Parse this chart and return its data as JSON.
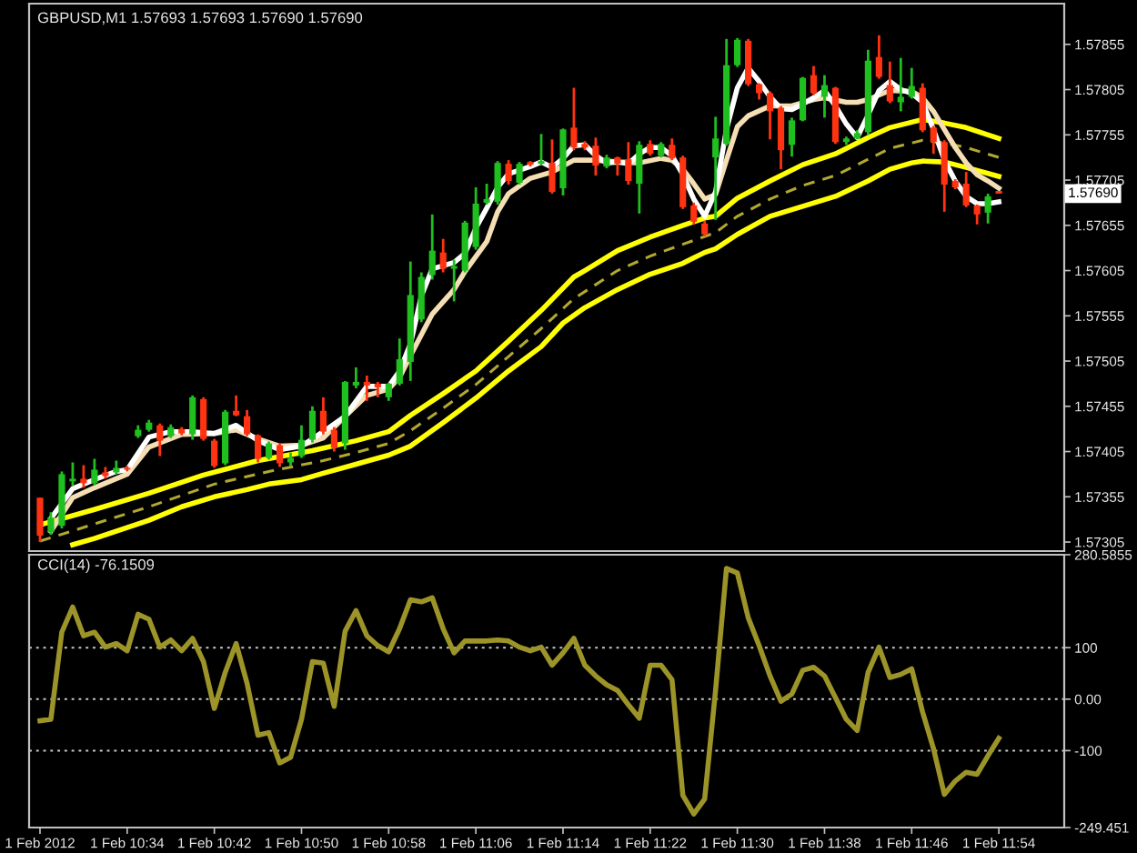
{
  "chart_data": [
    {
      "type": "candlestick",
      "title": "GBPUSD,M1 1.57693 1.57693 1.57690 1.57690",
      "x": [
        "2012-02-01T10:26",
        "2012-02-01T10:27",
        "2012-02-01T10:28",
        "2012-02-01T10:29",
        "2012-02-01T10:30",
        "2012-02-01T10:31",
        "2012-02-01T10:32",
        "2012-02-01T10:33",
        "2012-02-01T10:34",
        "2012-02-01T10:35",
        "2012-02-01T10:36",
        "2012-02-01T10:37",
        "2012-02-01T10:38",
        "2012-02-01T10:39",
        "2012-02-01T10:40",
        "2012-02-01T10:41",
        "2012-02-01T10:42",
        "2012-02-01T10:43",
        "2012-02-01T10:44",
        "2012-02-01T10:45",
        "2012-02-01T10:46",
        "2012-02-01T10:47",
        "2012-02-01T10:48",
        "2012-02-01T10:49",
        "2012-02-01T10:50",
        "2012-02-01T10:51",
        "2012-02-01T10:52",
        "2012-02-01T10:53",
        "2012-02-01T10:54",
        "2012-02-01T10:55",
        "2012-02-01T10:56",
        "2012-02-01T10:57",
        "2012-02-01T10:58",
        "2012-02-01T10:59",
        "2012-02-01T11:00",
        "2012-02-01T11:01",
        "2012-02-01T11:02",
        "2012-02-01T11:03",
        "2012-02-01T11:04",
        "2012-02-01T11:05",
        "2012-02-01T11:06",
        "2012-02-01T11:07",
        "2012-02-01T11:08",
        "2012-02-01T11:09",
        "2012-02-01T11:10",
        "2012-02-01T11:11",
        "2012-02-01T11:12",
        "2012-02-01T11:13",
        "2012-02-01T11:14",
        "2012-02-01T11:15",
        "2012-02-01T11:16",
        "2012-02-01T11:17",
        "2012-02-01T11:18",
        "2012-02-01T11:19",
        "2012-02-01T11:20",
        "2012-02-01T11:21",
        "2012-02-01T11:22",
        "2012-02-01T11:23",
        "2012-02-01T11:24",
        "2012-02-01T11:25",
        "2012-02-01T11:26",
        "2012-02-01T11:27",
        "2012-02-01T11:28",
        "2012-02-01T11:29",
        "2012-02-01T11:30",
        "2012-02-01T11:31",
        "2012-02-01T11:32",
        "2012-02-01T11:33",
        "2012-02-01T11:34",
        "2012-02-01T11:35",
        "2012-02-01T11:36",
        "2012-02-01T11:37",
        "2012-02-01T11:38",
        "2012-02-01T11:39",
        "2012-02-01T11:40",
        "2012-02-01T11:41",
        "2012-02-01T11:42",
        "2012-02-01T11:43",
        "2012-02-01T11:44",
        "2012-02-01T11:45",
        "2012-02-01T11:46",
        "2012-02-01T11:47",
        "2012-02-01T11:48",
        "2012-02-01T11:49",
        "2012-02-01T11:50",
        "2012-02-01T11:51",
        "2012-02-01T11:52",
        "2012-02-01T11:53",
        "2012-02-01T11:54"
      ],
      "ohlc": [
        [
          1.57354,
          1.57354,
          1.57305,
          1.57312
        ],
        [
          1.57316,
          1.57338,
          1.57313,
          1.57332
        ],
        [
          1.57323,
          1.57383,
          1.5732,
          1.5738
        ],
        [
          1.57372,
          1.57393,
          1.57367,
          1.57375
        ],
        [
          1.57375,
          1.5739,
          1.57365,
          1.5737
        ],
        [
          1.5737,
          1.57397,
          1.57368,
          1.57385
        ],
        [
          1.57382,
          1.57388,
          1.57375,
          1.57378
        ],
        [
          1.57382,
          1.57395,
          1.5738,
          1.57387
        ],
        [
          1.57387,
          1.57389,
          1.57383,
          1.57385
        ],
        [
          1.57422,
          1.57434,
          1.5742,
          1.57429
        ],
        [
          1.57429,
          1.5744,
          1.57427,
          1.57437
        ],
        [
          1.57434,
          1.57436,
          1.574,
          1.57417
        ],
        [
          1.57422,
          1.57435,
          1.5742,
          1.57432
        ],
        [
          1.5743,
          1.57432,
          1.57423,
          1.57425
        ],
        [
          1.57424,
          1.57467,
          1.57418,
          1.57465
        ],
        [
          1.57463,
          1.57465,
          1.57417,
          1.57419
        ],
        [
          1.57417,
          1.57419,
          1.57387,
          1.57389
        ],
        [
          1.57392,
          1.57451,
          1.5739,
          1.57449
        ],
        [
          1.5745,
          1.57467,
          1.57444,
          1.57445
        ],
        [
          1.57444,
          1.57451,
          1.57422,
          1.57424
        ],
        [
          1.57423,
          1.57424,
          1.57393,
          1.57397
        ],
        [
          1.57398,
          1.57416,
          1.57396,
          1.57414
        ],
        [
          1.57412,
          1.57414,
          1.57388,
          1.57392
        ],
        [
          1.57393,
          1.57404,
          1.57389,
          1.57398
        ],
        [
          1.574,
          1.57434,
          1.57398,
          1.57418
        ],
        [
          1.57418,
          1.57455,
          1.57415,
          1.5745
        ],
        [
          1.5745,
          1.57465,
          1.57424,
          1.57427
        ],
        [
          1.57429,
          1.57432,
          1.57405,
          1.57409
        ],
        [
          1.57414,
          1.57483,
          1.57407,
          1.57482
        ],
        [
          1.57478,
          1.57498,
          1.57475,
          1.57482
        ],
        [
          1.57482,
          1.57489,
          1.57461,
          1.57478
        ],
        [
          1.5748,
          1.57482,
          1.57465,
          1.57476
        ],
        [
          1.57465,
          1.57481,
          1.57461,
          1.5748
        ],
        [
          1.5748,
          1.5753,
          1.57478,
          1.57507
        ],
        [
          1.57504,
          1.57615,
          1.57483,
          1.57578
        ],
        [
          1.57551,
          1.57603,
          1.57548,
          1.57598
        ],
        [
          1.576,
          1.57667,
          1.57595,
          1.57627
        ],
        [
          1.57625,
          1.5764,
          1.57603,
          1.57607
        ],
        [
          1.57607,
          1.57617,
          1.57571,
          1.5761
        ],
        [
          1.57605,
          1.5766,
          1.57603,
          1.57658
        ],
        [
          1.57631,
          1.57697,
          1.57628,
          1.57679
        ],
        [
          1.5768,
          1.57701,
          1.57678,
          1.57684
        ],
        [
          1.57681,
          1.57726,
          1.57678,
          1.57724
        ],
        [
          1.57723,
          1.57727,
          1.577,
          1.57704
        ],
        [
          1.57702,
          1.57725,
          1.577,
          1.57723
        ],
        [
          1.57725,
          1.57726,
          1.5772,
          1.57722
        ],
        [
          1.57723,
          1.57756,
          1.57722,
          1.57726
        ],
        [
          1.57724,
          1.5775,
          1.5769,
          1.57692
        ],
        [
          1.57696,
          1.57762,
          1.57688,
          1.57761
        ],
        [
          1.57763,
          1.57807,
          1.57738,
          1.57741
        ],
        [
          1.57745,
          1.57748,
          1.57738,
          1.57741
        ],
        [
          1.57743,
          1.57752,
          1.5771,
          1.57721
        ],
        [
          1.5772,
          1.57733,
          1.57718,
          1.5773
        ],
        [
          1.5773,
          1.57731,
          1.5771,
          1.57723
        ],
        [
          1.57728,
          1.57747,
          1.577,
          1.57704
        ],
        [
          1.57701,
          1.57748,
          1.57668,
          1.57744
        ],
        [
          1.57745,
          1.57749,
          1.57732,
          1.57734
        ],
        [
          1.57732,
          1.57747,
          1.5773,
          1.57745
        ],
        [
          1.57744,
          1.57751,
          1.57727,
          1.57729
        ],
        [
          1.5773,
          1.57732,
          1.57673,
          1.57675
        ],
        [
          1.57677,
          1.5768,
          1.57656,
          1.57659
        ],
        [
          1.57657,
          1.5766,
          1.57643,
          1.57645
        ],
        [
          1.5773,
          1.57775,
          1.57661,
          1.57751
        ],
        [
          1.57745,
          1.57861,
          1.57743,
          1.57832
        ],
        [
          1.57832,
          1.57862,
          1.5783,
          1.5786
        ],
        [
          1.57859,
          1.57861,
          1.57809,
          1.57811
        ],
        [
          1.57811,
          1.57812,
          1.57794,
          1.57801
        ],
        [
          1.57801,
          1.57803,
          1.5775,
          1.57781
        ],
        [
          1.57785,
          1.57787,
          1.57717,
          1.57738
        ],
        [
          1.57744,
          1.57774,
          1.57731,
          1.57771
        ],
        [
          1.57771,
          1.57819,
          1.5777,
          1.57818
        ],
        [
          1.57821,
          1.57831,
          1.57799,
          1.57801
        ],
        [
          1.57797,
          1.57821,
          1.57774,
          1.5781
        ],
        [
          1.57807,
          1.57808,
          1.57745,
          1.57747
        ],
        [
          1.57747,
          1.57753,
          1.57744,
          1.57751
        ],
        [
          1.57751,
          1.5776,
          1.5775,
          1.57757
        ],
        [
          1.57758,
          1.57849,
          1.57755,
          1.57837
        ],
        [
          1.57841,
          1.57865,
          1.57817,
          1.57819
        ],
        [
          1.5781,
          1.57836,
          1.5779,
          1.57792
        ],
        [
          1.57791,
          1.5784,
          1.57781,
          1.57797
        ],
        [
          1.57797,
          1.57829,
          1.57795,
          1.57809
        ],
        [
          1.57807,
          1.57812,
          1.57758,
          1.5776
        ],
        [
          1.57763,
          1.57765,
          1.57734,
          1.57747
        ],
        [
          1.57747,
          1.57749,
          1.5767,
          1.577
        ],
        [
          1.57704,
          1.57706,
          1.57695,
          1.57697
        ],
        [
          1.57701,
          1.57714,
          1.57675,
          1.57677
        ],
        [
          1.57677,
          1.57678,
          1.57656,
          1.57667
        ],
        [
          1.57669,
          1.5769,
          1.57657,
          1.57687
        ],
        [
          1.57693,
          1.57693,
          1.5769,
          1.5769
        ]
      ],
      "colors": [
        "#ff3311",
        "#1fbf1f",
        "#1fbf1f",
        "#1fbf1f",
        "#ff3311",
        "#1fbf1f",
        "#ff3311",
        "#1fbf1f",
        "#ff3311",
        "#1fbf1f",
        "#1fbf1f",
        "#ff3311",
        "#1fbf1f",
        "#ff3311",
        "#1fbf1f",
        "#ff3311",
        "#ff3311",
        "#1fbf1f",
        "#ff3311",
        "#ff3311",
        "#ff3311",
        "#1fbf1f",
        "#ff3311",
        "#1fbf1f",
        "#1fbf1f",
        "#1fbf1f",
        "#ff3311",
        "#ff3311",
        "#1fbf1f",
        "#1fbf1f",
        "#ff3311",
        "#ff3311",
        "#1fbf1f",
        "#1fbf1f",
        "#1fbf1f",
        "#1fbf1f",
        "#1fbf1f",
        "#ff3311",
        "#1fbf1f",
        "#1fbf1f",
        "#1fbf1f",
        "#1fbf1f",
        "#1fbf1f",
        "#ff3311",
        "#1fbf1f",
        "#ff3311",
        "#1fbf1f",
        "#ff3311",
        "#1fbf1f",
        "#ff3311",
        "#ff3311",
        "#ff3311",
        "#1fbf1f",
        "#ff3311",
        "#ff3311",
        "#1fbf1f",
        "#ff3311",
        "#1fbf1f",
        "#ff3311",
        "#ff3311",
        "#ff3311",
        "#ff3311",
        "#1fbf1f",
        "#1fbf1f",
        "#1fbf1f",
        "#ff3311",
        "#ff3311",
        "#ff3311",
        "#ff3311",
        "#1fbf1f",
        "#1fbf1f",
        "#ff3311",
        "#1fbf1f",
        "#ff3311",
        "#1fbf1f",
        "#1fbf1f",
        "#1fbf1f",
        "#ff3311",
        "#ff3311",
        "#1fbf1f",
        "#1fbf1f",
        "#ff3311",
        "#ff3311",
        "#ff3311",
        "#ff3311",
        "#ff3311",
        "#ff3311",
        "#1fbf1f",
        "#ff3311"
      ],
      "series": [
        {
          "type": "line",
          "color": "#ffff00",
          "line_style": "solid",
          "x": [
            "2012-02-01T10:26",
            "2012-02-01T10:31",
            "2012-02-01T10:36",
            "2012-02-01T10:41",
            "2012-02-01T10:46",
            "2012-02-01T10:51",
            "2012-02-01T10:55",
            "2012-02-01T10:58",
            "2012-02-01T11:00",
            "2012-02-01T11:03",
            "2012-02-01T11:06",
            "2012-02-01T11:09",
            "2012-02-01T11:12",
            "2012-02-01T11:15",
            "2012-02-01T11:16",
            "2012-02-01T11:19",
            "2012-02-01T11:22",
            "2012-02-01T11:25",
            "2012-02-01T11:27",
            "2012-02-01T11:28",
            "2012-02-01T11:30",
            "2012-02-01T11:33",
            "2012-02-01T11:36",
            "2012-02-01T11:39",
            "2012-02-01T11:42",
            "2012-02-01T11:44",
            "2012-02-01T11:46",
            "2012-02-01T11:47",
            "2012-02-01T11:49",
            "2012-02-01T11:51",
            "2012-02-01T11:54"
          ],
          "values": [
            1.57324,
            1.57341,
            1.57359,
            1.57379,
            1.57395,
            1.57406,
            1.57417,
            1.57427,
            1.57445,
            1.57469,
            1.57494,
            1.57527,
            1.57561,
            1.57598,
            1.57605,
            1.57627,
            1.57642,
            1.57655,
            1.57663,
            1.57665,
            1.57685,
            1.57704,
            1.57722,
            1.57734,
            1.57752,
            1.57763,
            1.57769,
            1.57772,
            1.57768,
            1.57763,
            1.57751
          ]
        },
        {
          "type": "line",
          "color": "#b0a830",
          "line_style": "dashed",
          "x": [
            "2012-02-01T10:26",
            "2012-02-01T10:31",
            "2012-02-01T10:36",
            "2012-02-01T10:42",
            "2012-02-01T10:47",
            "2012-02-01T10:52",
            "2012-02-01T10:55",
            "2012-02-01T10:58",
            "2012-02-01T11:00",
            "2012-02-01T11:03",
            "2012-02-01T11:06",
            "2012-02-01T11:09",
            "2012-02-01T11:12",
            "2012-02-01T11:15",
            "2012-02-01T11:19",
            "2012-02-01T11:22",
            "2012-02-01T11:25",
            "2012-02-01T11:28",
            "2012-02-01T11:30",
            "2012-02-01T11:33",
            "2012-02-01T11:36",
            "2012-02-01T11:39",
            "2012-02-01T11:42",
            "2012-02-01T11:44",
            "2012-02-01T11:46",
            "2012-02-01T11:47",
            "2012-02-01T11:49",
            "2012-02-01T11:51",
            "2012-02-01T11:54"
          ],
          "values": [
            1.57306,
            1.57325,
            1.57344,
            1.57369,
            1.57383,
            1.57395,
            1.57404,
            1.57414,
            1.57428,
            1.57453,
            1.57479,
            1.5751,
            1.57541,
            1.57574,
            1.57605,
            1.57621,
            1.57634,
            1.57647,
            1.57665,
            1.57684,
            1.57699,
            1.5771,
            1.57728,
            1.5774,
            1.57746,
            1.57749,
            1.57746,
            1.57741,
            1.5773
          ]
        },
        {
          "type": "line",
          "color": "#ffff00",
          "line_style": "solid",
          "x": [
            "2012-02-01T10:29",
            "2012-02-01T10:31",
            "2012-02-01T10:34",
            "2012-02-01T10:36",
            "2012-02-01T10:39",
            "2012-02-01T10:42",
            "2012-02-01T10:45",
            "2012-02-01T10:47",
            "2012-02-01T10:50",
            "2012-02-01T10:52",
            "2012-02-01T10:55",
            "2012-02-01T10:58",
            "2012-02-01T11:00",
            "2012-02-01T11:03",
            "2012-02-01T11:06",
            "2012-02-01T11:09",
            "2012-02-01T11:12",
            "2012-02-01T11:14",
            "2012-02-01T11:16",
            "2012-02-01T11:19",
            "2012-02-01T11:22",
            "2012-02-01T11:25",
            "2012-02-01T11:27",
            "2012-02-01T11:28",
            "2012-02-01T11:30",
            "2012-02-01T11:33",
            "2012-02-01T11:36",
            "2012-02-01T11:39",
            "2012-02-01T11:42",
            "2012-02-01T11:44",
            "2012-02-01T11:46",
            "2012-02-01T11:47",
            "2012-02-01T11:49",
            "2012-02-01T11:51",
            "2012-02-01T11:54"
          ],
          "values": [
            1.57302,
            1.57309,
            1.57321,
            1.57329,
            1.57344,
            1.57355,
            1.57363,
            1.57369,
            1.57374,
            1.57381,
            1.57391,
            1.57401,
            1.57411,
            1.57437,
            1.57464,
            1.57494,
            1.57521,
            1.57547,
            1.57564,
            1.57584,
            1.57601,
            1.57613,
            1.57625,
            1.57629,
            1.57645,
            1.57665,
            1.57676,
            1.57687,
            1.57704,
            1.57717,
            1.57724,
            1.57726,
            1.57725,
            1.57719,
            1.57709
          ]
        },
        {
          "type": "line",
          "color": "#f5deb3",
          "line_style": "solid",
          "x": [
            "2012-02-01T10:27",
            "2012-02-01T10:29",
            "2012-02-01T10:31",
            "2012-02-01T10:34",
            "2012-02-01T10:36",
            "2012-02-01T10:39",
            "2012-02-01T10:42",
            "2012-02-01T10:44",
            "2012-02-01T10:46",
            "2012-02-01T10:48",
            "2012-02-01T10:50",
            "2012-02-01T10:52",
            "2012-02-01T10:54",
            "2012-02-01T10:56",
            "2012-02-01T10:58",
            "2012-02-01T10:59",
            "2012-02-01T11:00",
            "2012-02-01T11:02",
            "2012-02-01T11:04",
            "2012-02-01T11:05",
            "2012-02-01T11:07",
            "2012-02-01T11:08",
            "2012-02-01T11:09",
            "2012-02-01T11:11",
            "2012-02-01T11:13",
            "2012-02-01T11:15",
            "2012-02-01T11:17",
            "2012-02-01T11:19",
            "2012-02-01T11:21",
            "2012-02-01T11:23",
            "2012-02-01T11:24",
            "2012-02-01T11:25",
            "2012-02-01T11:26",
            "2012-02-01T11:27",
            "2012-02-01T11:28",
            "2012-02-01T11:29",
            "2012-02-01T11:30",
            "2012-02-01T11:31",
            "2012-02-01T11:33",
            "2012-02-01T11:35",
            "2012-02-01T11:37",
            "2012-02-01T11:38",
            "2012-02-01T11:40",
            "2012-02-01T11:41",
            "2012-02-01T11:42",
            "2012-02-01T11:44",
            "2012-02-01T11:46",
            "2012-02-01T11:47",
            "2012-02-01T11:48",
            "2012-02-01T11:49",
            "2012-02-01T11:50",
            "2012-02-01T11:51",
            "2012-02-01T11:52",
            "2012-02-01T11:53",
            "2012-02-01T11:54"
          ],
          "values": [
            1.57317,
            1.57354,
            1.57365,
            1.5738,
            1.5741,
            1.57424,
            1.57425,
            1.57429,
            1.57419,
            1.57411,
            1.57412,
            1.5742,
            1.57444,
            1.57467,
            1.57474,
            1.57487,
            1.57511,
            1.57557,
            1.57584,
            1.57604,
            1.57637,
            1.5767,
            1.5769,
            1.57707,
            1.57714,
            1.57727,
            1.57727,
            1.57725,
            1.57724,
            1.57729,
            1.57727,
            1.57717,
            1.57701,
            1.57684,
            1.57689,
            1.57727,
            1.57764,
            1.57776,
            1.57787,
            1.57787,
            1.57794,
            1.57796,
            1.57791,
            1.57791,
            1.57794,
            1.57804,
            1.57803,
            1.57796,
            1.57781,
            1.57761,
            1.57741,
            1.57724,
            1.57711,
            1.57704,
            1.57696
          ]
        },
        {
          "type": "line",
          "color": "#ffffff",
          "line_style": "solid",
          "x": [
            "2012-02-01T10:27",
            "2012-02-01T10:29",
            "2012-02-01T10:31",
            "2012-02-01T10:33",
            "2012-02-01T10:34",
            "2012-02-01T10:36",
            "2012-02-01T10:38",
            "2012-02-01T10:40",
            "2012-02-01T10:42",
            "2012-02-01T10:44",
            "2012-02-01T10:46",
            "2012-02-01T10:48",
            "2012-02-01T10:50",
            "2012-02-01T10:52",
            "2012-02-01T10:54",
            "2012-02-01T10:56",
            "2012-02-01T10:58",
            "2012-02-01T10:59",
            "2012-02-01T11:00",
            "2012-02-01T11:01",
            "2012-02-01T11:02",
            "2012-02-01T11:04",
            "2012-02-01T11:05",
            "2012-02-01T11:06",
            "2012-02-01T11:07",
            "2012-02-01T11:08",
            "2012-02-01T11:09",
            "2012-02-01T11:11",
            "2012-02-01T11:12",
            "2012-02-01T11:13",
            "2012-02-01T11:14",
            "2012-02-01T11:15",
            "2012-02-01T11:16",
            "2012-02-01T11:17",
            "2012-02-01T11:18",
            "2012-02-01T11:19",
            "2012-02-01T11:20",
            "2012-02-01T11:21",
            "2012-02-01T11:22",
            "2012-02-01T11:23",
            "2012-02-01T11:24",
            "2012-02-01T11:25",
            "2012-02-01T11:26",
            "2012-02-01T11:27",
            "2012-02-01T11:28",
            "2012-02-01T11:29",
            "2012-02-01T11:30",
            "2012-02-01T11:31",
            "2012-02-01T11:32",
            "2012-02-01T11:33",
            "2012-02-01T11:34",
            "2012-02-01T11:35",
            "2012-02-01T11:36",
            "2012-02-01T11:37",
            "2012-02-01T11:38",
            "2012-02-01T11:39",
            "2012-02-01T11:40",
            "2012-02-01T11:41",
            "2012-02-01T11:42",
            "2012-02-01T11:43",
            "2012-02-01T11:44",
            "2012-02-01T11:45",
            "2012-02-01T11:46",
            "2012-02-01T11:47",
            "2012-02-01T11:48",
            "2012-02-01T11:49",
            "2012-02-01T11:50",
            "2012-02-01T11:51",
            "2012-02-01T11:52",
            "2012-02-01T11:53",
            "2012-02-01T11:54"
          ],
          "values": [
            1.57331,
            1.57364,
            1.57374,
            1.57383,
            1.57385,
            1.57421,
            1.57427,
            1.57427,
            1.57425,
            1.57434,
            1.57417,
            1.57407,
            1.57411,
            1.57427,
            1.57444,
            1.57477,
            1.57477,
            1.57494,
            1.57524,
            1.57577,
            1.57607,
            1.57614,
            1.57624,
            1.57652,
            1.57674,
            1.57697,
            1.57712,
            1.5772,
            1.57725,
            1.57719,
            1.57729,
            1.57743,
            1.57744,
            1.57732,
            1.57724,
            1.57725,
            1.57723,
            1.57734,
            1.57741,
            1.57741,
            1.57732,
            1.57711,
            1.57684,
            1.57665,
            1.57692,
            1.57761,
            1.57807,
            1.57829,
            1.57814,
            1.57797,
            1.57784,
            1.57783,
            1.57789,
            1.57796,
            1.57804,
            1.57787,
            1.57767,
            1.57752,
            1.57777,
            1.57804,
            1.57814,
            1.57805,
            1.57801,
            1.57791,
            1.57761,
            1.57727,
            1.57704,
            1.57687,
            1.57679,
            1.57679,
            1.57681
          ]
        }
      ],
      "xlim": [
        "2012-02-01T10:25",
        "2012-02-01T12:00"
      ],
      "ylim": [
        1.57295,
        1.579
      ],
      "yticks": [
        1.57305,
        1.57355,
        1.57405,
        1.57455,
        1.57505,
        1.57555,
        1.57605,
        1.57655,
        1.57705,
        1.57755,
        1.57805,
        1.57855
      ],
      "tick_labels": "y",
      "annotations": [
        {
          "text": "1.57690",
          "y": 1.5769
        }
      ]
    },
    {
      "type": "line",
      "title": "CCI(14) -76.1509",
      "color": "#9c9428",
      "x": [
        "2012-02-01T10:26",
        "2012-02-01T10:27",
        "2012-02-01T10:28",
        "2012-02-01T10:29",
        "2012-02-01T10:30",
        "2012-02-01T10:31",
        "2012-02-01T10:32",
        "2012-02-01T10:33",
        "2012-02-01T10:34",
        "2012-02-01T10:35",
        "2012-02-01T10:36",
        "2012-02-01T10:37",
        "2012-02-01T10:38",
        "2012-02-01T10:39",
        "2012-02-01T10:40",
        "2012-02-01T10:41",
        "2012-02-01T10:42",
        "2012-02-01T10:43",
        "2012-02-01T10:44",
        "2012-02-01T10:45",
        "2012-02-01T10:46",
        "2012-02-01T10:47",
        "2012-02-01T10:48",
        "2012-02-01T10:49",
        "2012-02-01T10:50",
        "2012-02-01T10:51",
        "2012-02-01T10:52",
        "2012-02-01T10:53",
        "2012-02-01T10:54",
        "2012-02-01T10:55",
        "2012-02-01T10:56",
        "2012-02-01T10:57",
        "2012-02-01T10:58",
        "2012-02-01T10:59",
        "2012-02-01T11:00",
        "2012-02-01T11:01",
        "2012-02-01T11:02",
        "2012-02-01T11:03",
        "2012-02-01T11:04",
        "2012-02-01T11:05",
        "2012-02-01T11:06",
        "2012-02-01T11:07",
        "2012-02-01T11:08",
        "2012-02-01T11:09",
        "2012-02-01T11:10",
        "2012-02-01T11:11",
        "2012-02-01T11:12",
        "2012-02-01T11:13",
        "2012-02-01T11:14",
        "2012-02-01T11:15",
        "2012-02-01T11:16",
        "2012-02-01T11:17",
        "2012-02-01T11:18",
        "2012-02-01T11:19",
        "2012-02-01T11:20",
        "2012-02-01T11:21",
        "2012-02-01T11:22",
        "2012-02-01T11:23",
        "2012-02-01T11:24",
        "2012-02-01T11:25",
        "2012-02-01T11:26",
        "2012-02-01T11:27",
        "2012-02-01T11:28",
        "2012-02-01T11:29",
        "2012-02-01T11:30",
        "2012-02-01T11:31",
        "2012-02-01T11:32",
        "2012-02-01T11:33",
        "2012-02-01T11:34",
        "2012-02-01T11:35",
        "2012-02-01T11:36",
        "2012-02-01T11:37",
        "2012-02-01T11:38",
        "2012-02-01T11:39",
        "2012-02-01T11:40",
        "2012-02-01T11:41",
        "2012-02-01T11:42",
        "2012-02-01T11:43",
        "2012-02-01T11:44",
        "2012-02-01T11:45",
        "2012-02-01T11:46",
        "2012-02-01T11:47",
        "2012-02-01T11:48",
        "2012-02-01T11:49",
        "2012-02-01T11:50",
        "2012-02-01T11:51",
        "2012-02-01T11:52",
        "2012-02-01T11:53",
        "2012-02-01T11:54"
      ],
      "values": [
        -42,
        -39,
        130,
        179,
        123,
        130,
        101,
        108,
        94,
        165,
        155,
        101,
        115,
        94,
        118,
        73,
        -18,
        52,
        108,
        31,
        -70,
        -65,
        -124,
        -113,
        -39,
        73,
        70,
        -14,
        132,
        172,
        123,
        104,
        92,
        137,
        193,
        189,
        197,
        137,
        90,
        113,
        113,
        113,
        115,
        113,
        101,
        94,
        101,
        66,
        90,
        118,
        66,
        45,
        28,
        17,
        -11,
        -37,
        66,
        66,
        38,
        -187,
        -223,
        -194,
        17,
        254,
        245,
        158,
        104,
        45,
        -4,
        10,
        56,
        62,
        45,
        3,
        -39,
        -61,
        52,
        101,
        42,
        48,
        59,
        -25,
        -96,
        -185,
        -159,
        -142,
        -146,
        -110,
        -76
      ],
      "xlim": [
        "2012-02-01T10:25",
        "2012-02-01T12:00"
      ],
      "xticks": [
        {
          "value": "2012-02-01T10:26",
          "label": "1 Feb 2012"
        },
        {
          "value": "2012-02-01T10:34",
          "label": "1 Feb 10:34"
        },
        {
          "value": "2012-02-01T10:42",
          "label": "1 Feb 10:42"
        },
        {
          "value": "2012-02-01T10:50",
          "label": "1 Feb 10:50"
        },
        {
          "value": "2012-02-01T10:58",
          "label": "1 Feb 10:58"
        },
        {
          "value": "2012-02-01T11:06",
          "label": "1 Feb 11:06"
        },
        {
          "value": "2012-02-01T11:14",
          "label": "1 Feb 11:14"
        },
        {
          "value": "2012-02-01T11:22",
          "label": "1 Feb 11:22"
        },
        {
          "value": "2012-02-01T11:30",
          "label": "1 Feb 11:30"
        },
        {
          "value": "2012-02-01T11:38",
          "label": "1 Feb 11:38"
        },
        {
          "value": "2012-02-01T11:46",
          "label": "1 Feb 11:46"
        },
        {
          "value": "2012-02-01T11:54",
          "label": "1 Feb 11:54"
        }
      ],
      "ylim": [
        -249.451,
        280.5855
      ],
      "yticks": [
        -249.451,
        -100,
        {
          "value": 0,
          "label": "0.00"
        },
        100,
        280.5855
      ],
      "ref_lines": [
        {
          "axis": "y",
          "value": 100,
          "color": "#c8c8c8",
          "line_style": "dotted"
        },
        {
          "axis": "y",
          "value": 0,
          "color": "#c8c8c8",
          "line_style": "dotted"
        },
        {
          "axis": "y",
          "value": -100,
          "color": "#c8c8c8",
          "line_style": "dotted"
        }
      ]
    }
  ]
}
